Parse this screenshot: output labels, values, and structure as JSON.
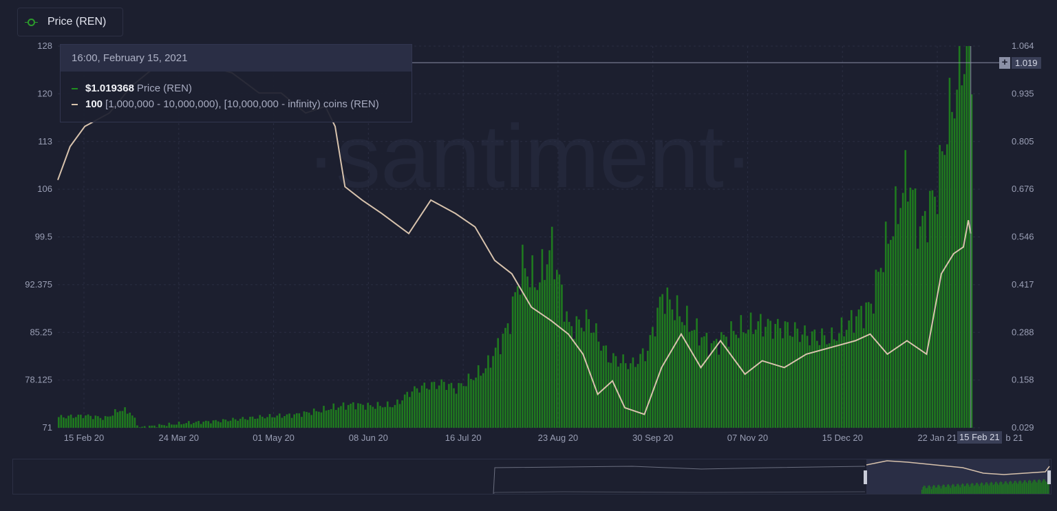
{
  "legend": {
    "label": "Price (REN)",
    "color": "#2c9b2c"
  },
  "watermark": "·santiment·",
  "tooltip": {
    "date": "16:00, February 15, 2021",
    "rows": [
      {
        "value": "$1.019368",
        "name": "Price (REN)",
        "color": "#1f8f1f"
      },
      {
        "value": "100",
        "name": "[1,000,000 - 10,000,000), [10,000,000 - infinity) coins (REN)",
        "color": "#d8c3ad"
      }
    ]
  },
  "crosshair": {
    "date_label": "15 Feb 21",
    "price_label": "1.019",
    "plus_label": "+"
  },
  "colors": {
    "background": "#1c1f2f",
    "price_bars": "#1f7a1f",
    "holders_line": "#d8c3ad",
    "grid": "#2a2e42",
    "axis_text": "#9a9fb5"
  },
  "chart_data": {
    "type": "bar",
    "x_start": "2020-02-09",
    "x_end": "2021-02-19",
    "x_ticks": [
      "15 Feb 20",
      "24 Mar 20",
      "01 May 20",
      "08 Jun 20",
      "16 Jul 20",
      "23 Aug 20",
      "30 Sep 20",
      "07 Nov 20",
      "15 Dec 20",
      "22 Jan 21",
      "b 21"
    ],
    "left_axis": {
      "ticks": [
        "71",
        "78.125",
        "85.25",
        "92.375",
        "99.5",
        "106",
        "113",
        "120",
        "128"
      ],
      "range": [
        71,
        128
      ]
    },
    "right_axis": {
      "ticks": [
        "0.029",
        "0.158",
        "0.288",
        "0.417",
        "0.546",
        "0.676",
        "0.805",
        "0.935",
        "1.064"
      ],
      "range": [
        0.029,
        1.064
      ]
    },
    "series": [
      {
        "name": "Price (REN)",
        "axis": "right",
        "style": "bars",
        "points": [
          [
            "2020-02-09",
            0.058
          ],
          [
            "2020-02-20",
            0.062
          ],
          [
            "2020-02-28",
            0.055
          ],
          [
            "2020-03-05",
            0.078
          ],
          [
            "2020-03-09",
            0.072
          ],
          [
            "2020-03-13",
            0.03
          ],
          [
            "2020-03-20",
            0.035
          ],
          [
            "2020-04-01",
            0.042
          ],
          [
            "2020-04-15",
            0.048
          ],
          [
            "2020-05-01",
            0.058
          ],
          [
            "2020-05-15",
            0.064
          ],
          [
            "2020-05-25",
            0.075
          ],
          [
            "2020-06-01",
            0.085
          ],
          [
            "2020-06-08",
            0.092
          ],
          [
            "2020-06-15",
            0.088
          ],
          [
            "2020-06-25",
            0.09
          ],
          [
            "2020-07-01",
            0.125
          ],
          [
            "2020-07-05",
            0.138
          ],
          [
            "2020-07-15",
            0.15
          ],
          [
            "2020-07-20",
            0.135
          ],
          [
            "2020-08-01",
            0.19
          ],
          [
            "2020-08-10",
            0.3
          ],
          [
            "2020-08-16",
            0.47
          ],
          [
            "2020-08-22",
            0.42
          ],
          [
            "2020-08-28",
            0.52
          ],
          [
            "2020-09-04",
            0.3
          ],
          [
            "2020-09-12",
            0.32
          ],
          [
            "2020-09-20",
            0.22
          ],
          [
            "2020-09-30",
            0.2
          ],
          [
            "2020-10-06",
            0.24
          ],
          [
            "2020-10-12",
            0.39
          ],
          [
            "2020-10-20",
            0.33
          ],
          [
            "2020-11-01",
            0.25
          ],
          [
            "2020-11-10",
            0.29
          ],
          [
            "2020-11-20",
            0.31
          ],
          [
            "2020-12-01",
            0.3
          ],
          [
            "2020-12-10",
            0.28
          ],
          [
            "2020-12-20",
            0.27
          ],
          [
            "2020-12-30",
            0.33
          ],
          [
            "2021-01-05",
            0.36
          ],
          [
            "2021-01-10",
            0.5
          ],
          [
            "2021-01-15",
            0.6
          ],
          [
            "2021-01-20",
            0.72
          ],
          [
            "2021-01-25",
            0.56
          ],
          [
            "2021-02-01",
            0.68
          ],
          [
            "2021-02-05",
            0.85
          ],
          [
            "2021-02-10",
            0.98
          ],
          [
            "2021-02-12",
            1.05
          ],
          [
            "2021-02-15",
            1.019
          ]
        ]
      },
      {
        "name": "[1,000,000 - 10,000,000), [10,000,000 - infinity) coins (REN)",
        "axis": "left",
        "style": "line",
        "points": [
          [
            "2020-02-09",
            108
          ],
          [
            "2020-02-14",
            113
          ],
          [
            "2020-02-20",
            116
          ],
          [
            "2020-03-01",
            118
          ],
          [
            "2020-03-10",
            122
          ],
          [
            "2020-03-20",
            125
          ],
          [
            "2020-04-01",
            126
          ],
          [
            "2020-04-10",
            125
          ],
          [
            "2020-04-20",
            124
          ],
          [
            "2020-05-01",
            121
          ],
          [
            "2020-05-10",
            121
          ],
          [
            "2020-05-20",
            118
          ],
          [
            "2020-05-28",
            119
          ],
          [
            "2020-06-01",
            116
          ],
          [
            "2020-06-05",
            107
          ],
          [
            "2020-06-12",
            105
          ],
          [
            "2020-06-20",
            103
          ],
          [
            "2020-07-01",
            100
          ],
          [
            "2020-07-10",
            105
          ],
          [
            "2020-07-20",
            103
          ],
          [
            "2020-07-28",
            101
          ],
          [
            "2020-08-05",
            96
          ],
          [
            "2020-08-12",
            94
          ],
          [
            "2020-08-20",
            89
          ],
          [
            "2020-08-28",
            87
          ],
          [
            "2020-09-04",
            85
          ],
          [
            "2020-09-10",
            82
          ],
          [
            "2020-09-16",
            76
          ],
          [
            "2020-09-22",
            78
          ],
          [
            "2020-09-27",
            74
          ],
          [
            "2020-10-05",
            73
          ],
          [
            "2020-10-12",
            80
          ],
          [
            "2020-10-20",
            85
          ],
          [
            "2020-10-28",
            80
          ],
          [
            "2020-11-05",
            84
          ],
          [
            "2020-11-15",
            79
          ],
          [
            "2020-11-22",
            81
          ],
          [
            "2020-12-01",
            80
          ],
          [
            "2020-12-10",
            82
          ],
          [
            "2020-12-20",
            83
          ],
          [
            "2020-12-30",
            84
          ],
          [
            "2021-01-05",
            85
          ],
          [
            "2021-01-12",
            82
          ],
          [
            "2021-01-20",
            84
          ],
          [
            "2021-01-28",
            82
          ],
          [
            "2021-02-03",
            94
          ],
          [
            "2021-02-08",
            97
          ],
          [
            "2021-02-12",
            98
          ],
          [
            "2021-02-14",
            102
          ],
          [
            "2021-02-15",
            100
          ]
        ]
      }
    ],
    "grid": true,
    "legend_position": "top-left"
  },
  "navigator": {
    "aria": "range-navigator"
  }
}
